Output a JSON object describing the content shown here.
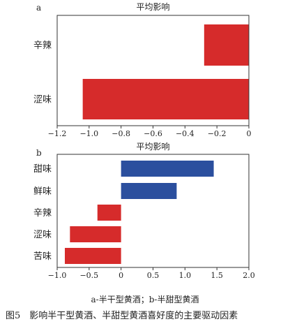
{
  "chart_data": [
    {
      "panel": "a",
      "type": "bar",
      "orientation": "horizontal",
      "title": "平均影响",
      "categories": [
        "辛辣",
        "涩味"
      ],
      "values": [
        -0.28,
        -1.04
      ],
      "bar_colors": [
        "#d62b2b",
        "#d62b2b"
      ],
      "xlim": [
        -1.2,
        0
      ],
      "xticks": [
        "-1.2",
        "-1.0",
        "-0.8",
        "-0.6",
        "-0.4",
        "-0.2",
        "0"
      ],
      "xtick_values": [
        -1.2,
        -1.0,
        -0.8,
        -0.6,
        -0.4,
        -0.2,
        0
      ],
      "grid": false
    },
    {
      "panel": "b",
      "type": "bar",
      "orientation": "horizontal",
      "title": "平均影响",
      "categories": [
        "甜味",
        "鲜味",
        "辛辣",
        "涩味",
        "苦味"
      ],
      "values": [
        1.45,
        0.87,
        -0.37,
        -0.8,
        -0.88
      ],
      "bar_colors": [
        "#2b4f9e",
        "#2b4f9e",
        "#d62b2b",
        "#d62b2b",
        "#d62b2b"
      ],
      "xlim": [
        -1.0,
        2.0
      ],
      "xticks": [
        "-1.0",
        "-0.5",
        "0",
        "0.5",
        "1.0",
        "1.5",
        "2.0"
      ],
      "xtick_values": [
        -1.0,
        -0.5,
        0,
        0.5,
        1.0,
        1.5,
        2.0
      ],
      "grid": false
    }
  ],
  "captions": {
    "sub": "a-半干型黄酒；b-半甜型黄酒",
    "main": "图5　影响半干型黄酒、半甜型黄酒喜好度的主要驱动因素"
  }
}
